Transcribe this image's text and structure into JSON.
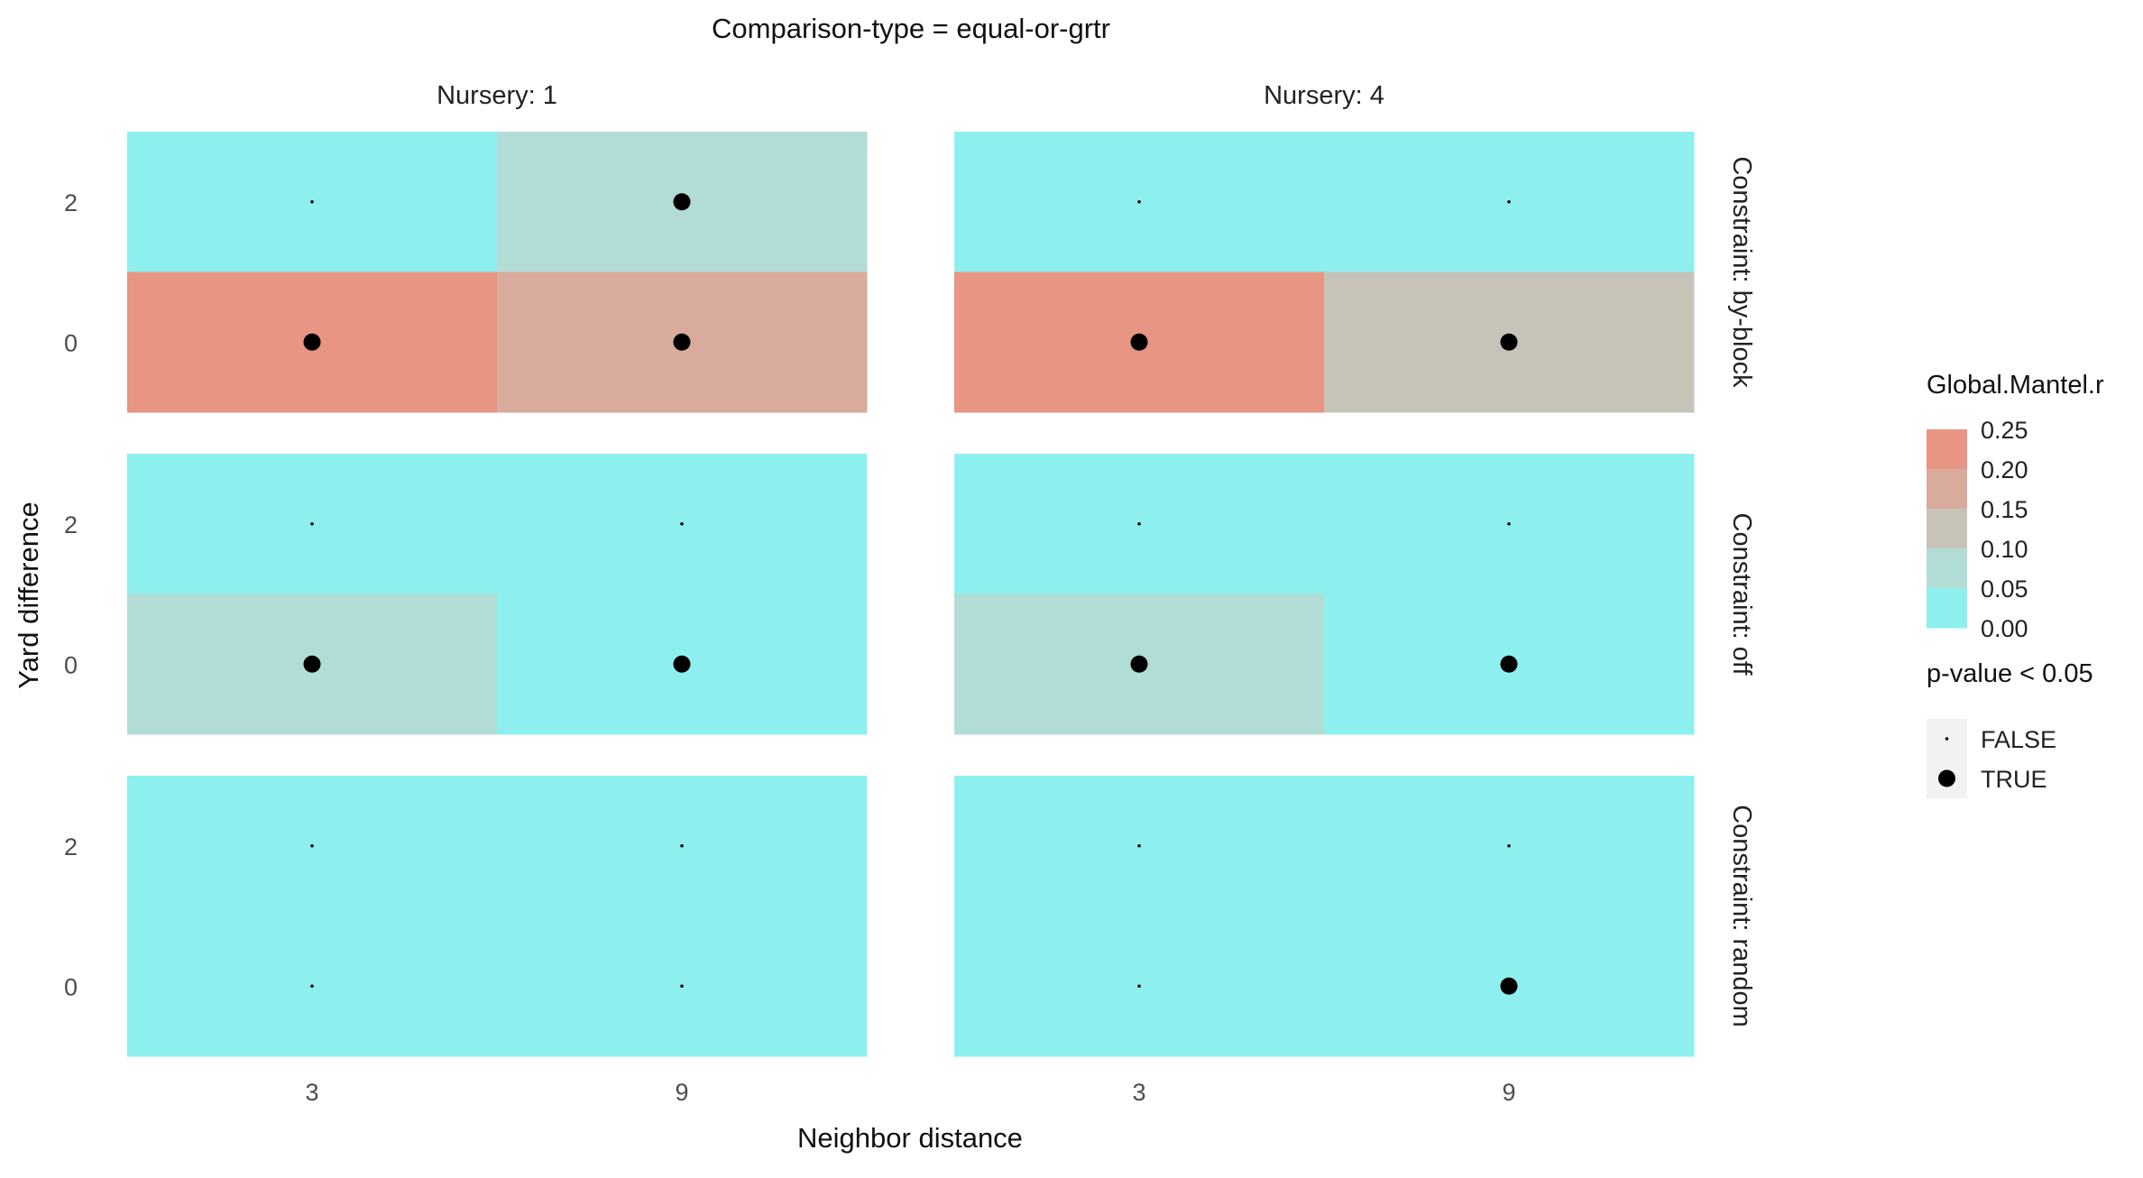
{
  "chart_data": {
    "type": "heatmap",
    "title": "Comparison-type = equal-or-grtr",
    "xlabel": "Neighbor distance",
    "ylabel": "Yard difference",
    "x_categories": [
      "3",
      "9"
    ],
    "y_categories": [
      "0",
      "2"
    ],
    "column_facets": [
      "Nursery: 1",
      "Nursery: 4"
    ],
    "row_facets": [
      "Constraint: by-block",
      "Constraint: off",
      "Constraint: random"
    ],
    "fill_legend": {
      "title": "Global.Mantel.r",
      "labels": [
        "0.25",
        "0.20",
        "0.15",
        "0.10",
        "0.05",
        "0.00"
      ],
      "steps": [
        {
          "value": 0.25,
          "color": "#e89584"
        },
        {
          "value": 0.2,
          "color": "#d9ab9d"
        },
        {
          "value": 0.15,
          "color": "#c8c3b8"
        },
        {
          "value": 0.1,
          "color": "#b2dcd6"
        },
        {
          "value": 0.05,
          "color": "#8ef0ee"
        }
      ]
    },
    "size_legend": {
      "title": "p-value < 0.05",
      "entries": [
        {
          "label": "FALSE",
          "significant": false
        },
        {
          "label": "TRUE",
          "significant": true
        }
      ]
    },
    "cells": [
      {
        "nursery": "Nursery: 1",
        "constraint": "Constraint: by-block",
        "x": "3",
        "y": "2",
        "r": 0.02,
        "significant": false
      },
      {
        "nursery": "Nursery: 1",
        "constraint": "Constraint: by-block",
        "x": "9",
        "y": "2",
        "r": 0.1,
        "significant": true
      },
      {
        "nursery": "Nursery: 1",
        "constraint": "Constraint: by-block",
        "x": "3",
        "y": "0",
        "r": 0.25,
        "significant": true
      },
      {
        "nursery": "Nursery: 1",
        "constraint": "Constraint: by-block",
        "x": "9",
        "y": "0",
        "r": 0.2,
        "significant": true
      },
      {
        "nursery": "Nursery: 4",
        "constraint": "Constraint: by-block",
        "x": "3",
        "y": "2",
        "r": 0.02,
        "significant": false
      },
      {
        "nursery": "Nursery: 4",
        "constraint": "Constraint: by-block",
        "x": "9",
        "y": "2",
        "r": 0.02,
        "significant": false
      },
      {
        "nursery": "Nursery: 4",
        "constraint": "Constraint: by-block",
        "x": "3",
        "y": "0",
        "r": 0.25,
        "significant": true
      },
      {
        "nursery": "Nursery: 4",
        "constraint": "Constraint: by-block",
        "x": "9",
        "y": "0",
        "r": 0.15,
        "significant": true
      },
      {
        "nursery": "Nursery: 1",
        "constraint": "Constraint: off",
        "x": "3",
        "y": "2",
        "r": 0.02,
        "significant": false
      },
      {
        "nursery": "Nursery: 1",
        "constraint": "Constraint: off",
        "x": "9",
        "y": "2",
        "r": 0.02,
        "significant": false
      },
      {
        "nursery": "Nursery: 1",
        "constraint": "Constraint: off",
        "x": "3",
        "y": "0",
        "r": 0.1,
        "significant": true
      },
      {
        "nursery": "Nursery: 1",
        "constraint": "Constraint: off",
        "x": "9",
        "y": "0",
        "r": 0.03,
        "significant": true
      },
      {
        "nursery": "Nursery: 4",
        "constraint": "Constraint: off",
        "x": "3",
        "y": "2",
        "r": 0.02,
        "significant": false
      },
      {
        "nursery": "Nursery: 4",
        "constraint": "Constraint: off",
        "x": "9",
        "y": "2",
        "r": 0.02,
        "significant": false
      },
      {
        "nursery": "Nursery: 4",
        "constraint": "Constraint: off",
        "x": "3",
        "y": "0",
        "r": 0.1,
        "significant": true
      },
      {
        "nursery": "Nursery: 4",
        "constraint": "Constraint: off",
        "x": "9",
        "y": "0",
        "r": 0.03,
        "significant": true
      },
      {
        "nursery": "Nursery: 1",
        "constraint": "Constraint: random",
        "x": "3",
        "y": "2",
        "r": 0.01,
        "significant": false
      },
      {
        "nursery": "Nursery: 1",
        "constraint": "Constraint: random",
        "x": "9",
        "y": "2",
        "r": 0.01,
        "significant": false
      },
      {
        "nursery": "Nursery: 1",
        "constraint": "Constraint: random",
        "x": "3",
        "y": "0",
        "r": 0.01,
        "significant": false
      },
      {
        "nursery": "Nursery: 1",
        "constraint": "Constraint: random",
        "x": "9",
        "y": "0",
        "r": 0.01,
        "significant": false
      },
      {
        "nursery": "Nursery: 4",
        "constraint": "Constraint: random",
        "x": "3",
        "y": "2",
        "r": 0.01,
        "significant": false
      },
      {
        "nursery": "Nursery: 4",
        "constraint": "Constraint: random",
        "x": "9",
        "y": "2",
        "r": 0.01,
        "significant": false
      },
      {
        "nursery": "Nursery: 4",
        "constraint": "Constraint: random",
        "x": "3",
        "y": "0",
        "r": 0.01,
        "significant": false
      },
      {
        "nursery": "Nursery: 4",
        "constraint": "Constraint: random",
        "x": "9",
        "y": "0",
        "r": 0.03,
        "significant": true
      }
    ]
  }
}
